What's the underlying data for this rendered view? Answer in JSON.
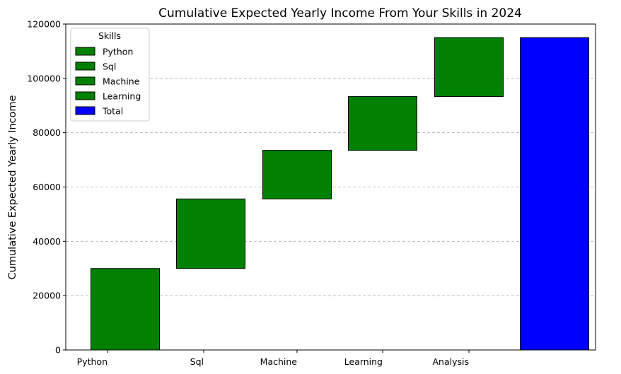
{
  "chart_data": {
    "type": "bar",
    "variant": "waterfall",
    "title": "Cumulative Expected Yearly Income From Your Skills in 2024",
    "xlabel": "",
    "ylabel": "Cumulative Expected Yearly Income",
    "ylim": [
      0,
      120000
    ],
    "yticks": [
      0,
      20000,
      40000,
      60000,
      80000,
      100000,
      120000
    ],
    "grid": {
      "y": true,
      "x": false,
      "style": "dashed"
    },
    "categories": [
      "Python",
      "Sql",
      "Machine",
      "Learning",
      "Analysis"
    ],
    "bars": [
      {
        "category": "Python",
        "start": 0,
        "end": 30000,
        "color": "#008000"
      },
      {
        "category": "Sql",
        "start": 30000,
        "end": 55600,
        "color": "#008000"
      },
      {
        "category": "Machine",
        "start": 55600,
        "end": 73500,
        "color": "#008000"
      },
      {
        "category": "Learning",
        "start": 73500,
        "end": 93300,
        "color": "#008000"
      },
      {
        "category": "Analysis",
        "start": 93300,
        "end": 115000,
        "color": "#008000"
      },
      {
        "category": "",
        "start": 0,
        "end": 115000,
        "color": "#0000ff",
        "is_total": true
      }
    ],
    "legend": {
      "title": "Skills",
      "position": "upper-left",
      "entries": [
        {
          "label": "Python",
          "color": "#008000"
        },
        {
          "label": "Sql",
          "color": "#008000"
        },
        {
          "label": "Machine",
          "color": "#008000"
        },
        {
          "label": "Learning",
          "color": "#008000"
        },
        {
          "label": "Total",
          "color": "#0000ff"
        }
      ]
    }
  }
}
